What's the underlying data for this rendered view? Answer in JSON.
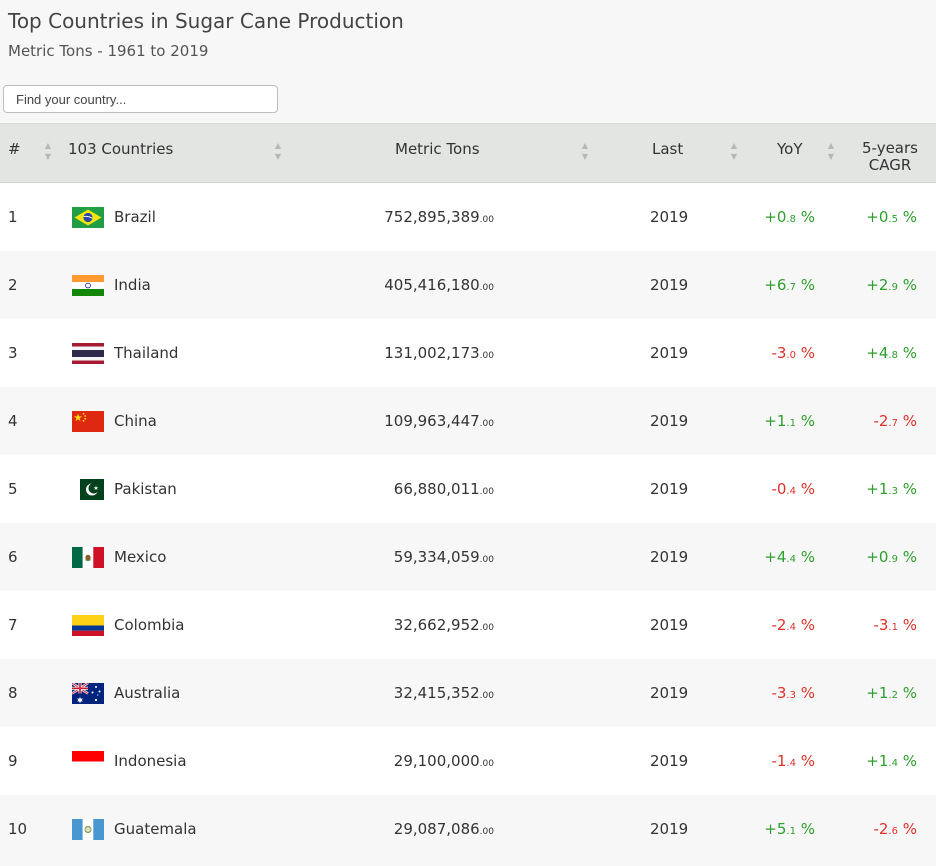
{
  "header": {
    "title": "Top Countries in Sugar Cane Production",
    "subtitle": "Metric Tons - 1961 to 2019"
  },
  "search": {
    "placeholder": "Find your country..."
  },
  "table": {
    "columns": {
      "rank": "#",
      "country": "103 Countries",
      "value": "Metric Tons",
      "last": "Last",
      "yoy": "YoY",
      "cagr_line1": "5-years",
      "cagr_line2": "CAGR"
    },
    "rows": [
      {
        "rank": "1",
        "country": "Brazil",
        "flag": "flag-brazil-icon",
        "value_int": "752,895,389",
        "value_dec": ".00",
        "last": "2019",
        "yoy_int": "+0",
        "yoy_dec": ".8",
        "yoy_unit": " %",
        "yoy_sign": "pos",
        "cagr_int": "+0",
        "cagr_dec": ".5",
        "cagr_unit": " %",
        "cagr_sign": "pos"
      },
      {
        "rank": "2",
        "country": "India",
        "flag": "flag-india-icon",
        "value_int": "405,416,180",
        "value_dec": ".00",
        "last": "2019",
        "yoy_int": "+6",
        "yoy_dec": ".7",
        "yoy_unit": " %",
        "yoy_sign": "pos",
        "cagr_int": "+2",
        "cagr_dec": ".9",
        "cagr_unit": " %",
        "cagr_sign": "pos"
      },
      {
        "rank": "3",
        "country": "Thailand",
        "flag": "flag-thailand-icon",
        "value_int": "131,002,173",
        "value_dec": ".00",
        "last": "2019",
        "yoy_int": "-3",
        "yoy_dec": ".0",
        "yoy_unit": " %",
        "yoy_sign": "neg",
        "cagr_int": "+4",
        "cagr_dec": ".8",
        "cagr_unit": " %",
        "cagr_sign": "pos"
      },
      {
        "rank": "4",
        "country": "China",
        "flag": "flag-china-icon",
        "value_int": "109,963,447",
        "value_dec": ".00",
        "last": "2019",
        "yoy_int": "+1",
        "yoy_dec": ".1",
        "yoy_unit": " %",
        "yoy_sign": "pos",
        "cagr_int": "-2",
        "cagr_dec": ".7",
        "cagr_unit": " %",
        "cagr_sign": "neg"
      },
      {
        "rank": "5",
        "country": "Pakistan",
        "flag": "flag-pakistan-icon",
        "value_int": "66,880,011",
        "value_dec": ".00",
        "last": "2019",
        "yoy_int": "-0",
        "yoy_dec": ".4",
        "yoy_unit": " %",
        "yoy_sign": "neg",
        "cagr_int": "+1",
        "cagr_dec": ".3",
        "cagr_unit": " %",
        "cagr_sign": "pos"
      },
      {
        "rank": "6",
        "country": "Mexico",
        "flag": "flag-mexico-icon",
        "value_int": "59,334,059",
        "value_dec": ".00",
        "last": "2019",
        "yoy_int": "+4",
        "yoy_dec": ".4",
        "yoy_unit": " %",
        "yoy_sign": "pos",
        "cagr_int": "+0",
        "cagr_dec": ".9",
        "cagr_unit": " %",
        "cagr_sign": "pos"
      },
      {
        "rank": "7",
        "country": "Colombia",
        "flag": "flag-colombia-icon",
        "value_int": "32,662,952",
        "value_dec": ".00",
        "last": "2019",
        "yoy_int": "-2",
        "yoy_dec": ".4",
        "yoy_unit": " %",
        "yoy_sign": "neg",
        "cagr_int": "-3",
        "cagr_dec": ".1",
        "cagr_unit": " %",
        "cagr_sign": "neg"
      },
      {
        "rank": "8",
        "country": "Australia",
        "flag": "flag-australia-icon",
        "value_int": "32,415,352",
        "value_dec": ".00",
        "last": "2019",
        "yoy_int": "-3",
        "yoy_dec": ".3",
        "yoy_unit": " %",
        "yoy_sign": "neg",
        "cagr_int": "+1",
        "cagr_dec": ".2",
        "cagr_unit": " %",
        "cagr_sign": "pos"
      },
      {
        "rank": "9",
        "country": "Indonesia",
        "flag": "flag-indonesia-icon",
        "value_int": "29,100,000",
        "value_dec": ".00",
        "last": "2019",
        "yoy_int": "-1",
        "yoy_dec": ".4",
        "yoy_unit": " %",
        "yoy_sign": "neg",
        "cagr_int": "+1",
        "cagr_dec": ".4",
        "cagr_unit": " %",
        "cagr_sign": "pos"
      },
      {
        "rank": "10",
        "country": "Guatemala",
        "flag": "flag-guatemala-icon",
        "value_int": "29,087,086",
        "value_dec": ".00",
        "last": "2019",
        "yoy_int": "+5",
        "yoy_dec": ".1",
        "yoy_unit": " %",
        "yoy_sign": "pos",
        "cagr_int": "-2",
        "cagr_dec": ".6",
        "cagr_unit": " %",
        "cagr_sign": "neg"
      }
    ]
  },
  "colors": {
    "positive": "#2e9e2e",
    "negative": "#e0302a",
    "header_bg": "#e2e5e2"
  }
}
